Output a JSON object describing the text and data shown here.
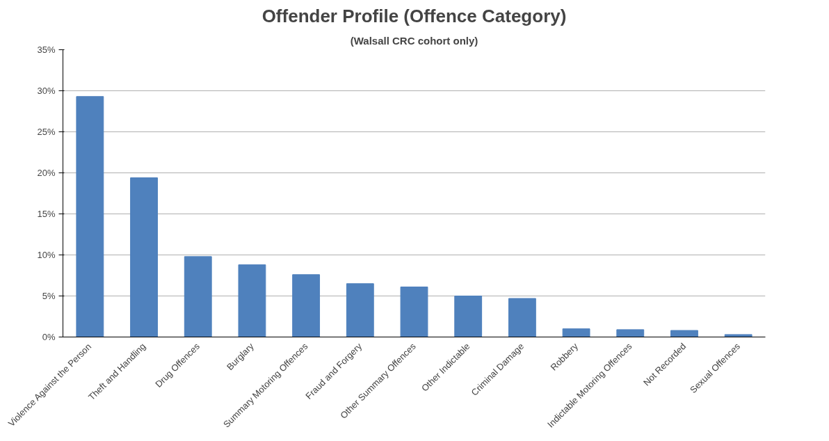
{
  "chart_data": {
    "type": "bar",
    "title": "Offender Profile (Offence Category)",
    "subtitle": "(Walsall CRC cohort only)",
    "categories": [
      "Violence Against the Person",
      "Theft and Handling",
      "Drug Offences",
      "Burglary",
      "Summary Motoring Offences",
      "Fraud and Forgery",
      "Other Summary Offences",
      "Other Indictable",
      "Criminal Damage",
      "Robbery",
      "Indictable Motoring Offences",
      "Not Recorded",
      "Sexual Offences"
    ],
    "values": [
      29.3,
      19.4,
      9.8,
      8.8,
      7.6,
      6.5,
      6.1,
      5.0,
      4.7,
      1.0,
      0.9,
      0.8,
      0.3
    ],
    "color": "#4f81bd",
    "ylim": [
      0,
      35
    ],
    "yticks": [
      {
        "value": 0,
        "label": "0%"
      },
      {
        "value": 5,
        "label": "5%"
      },
      {
        "value": 10,
        "label": "10%"
      },
      {
        "value": 15,
        "label": "15%"
      },
      {
        "value": 20,
        "label": "20%"
      },
      {
        "value": 25,
        "label": "25%"
      },
      {
        "value": 30,
        "label": "30%"
      },
      {
        "value": 35,
        "label": "35%"
      }
    ],
    "grid": "y"
  }
}
